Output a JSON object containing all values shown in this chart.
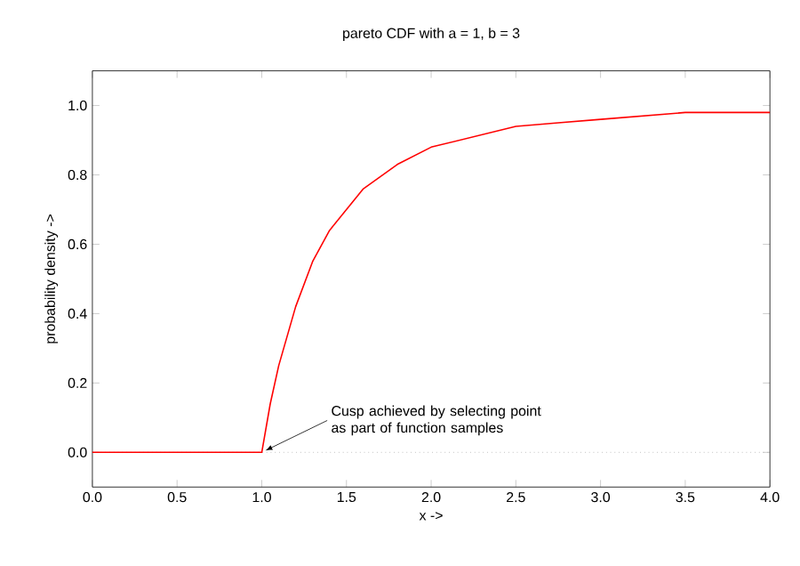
{
  "chart_data": {
    "type": "line",
    "title": "pareto CDF with a = 1, b = 3",
    "xlabel": "x ->",
    "ylabel": "probability density ->",
    "x": [
      0,
      0.5,
      1.0,
      1.05,
      1.1,
      1.2,
      1.3,
      1.4,
      1.5,
      1.6,
      1.8,
      2.0,
      2.25,
      2.5,
      2.75,
      3.0,
      3.5,
      4.0
    ],
    "values": [
      0,
      0,
      0,
      0.14,
      0.25,
      0.42,
      0.55,
      0.64,
      0.7,
      0.76,
      0.83,
      0.88,
      0.91,
      0.94,
      0.95,
      0.96,
      0.98,
      0.98
    ],
    "color": "#ff0000",
    "line_style": "solid",
    "marker": "none",
    "xlim": [
      0,
      4
    ],
    "ylim": [
      -0.1,
      1.1
    ],
    "xticks": [
      {
        "value": 0,
        "label": "0.0"
      },
      {
        "value": 0.5,
        "label": "0.5"
      },
      {
        "value": 1,
        "label": "1.0"
      },
      {
        "value": 1.5,
        "label": "1.5"
      },
      {
        "value": 2,
        "label": "2.0"
      },
      {
        "value": 2.5,
        "label": "2.5"
      },
      {
        "value": 3,
        "label": "3.0"
      },
      {
        "value": 3.5,
        "label": "3.5"
      },
      {
        "value": 4,
        "label": "4.0"
      }
    ],
    "yticks": [
      {
        "value": 0,
        "label": "0.0"
      },
      {
        "value": 0.2,
        "label": "0.2"
      },
      {
        "value": 0.4,
        "label": "0.4"
      },
      {
        "value": 0.6,
        "label": "0.6"
      },
      {
        "value": 0.8,
        "label": "0.8"
      },
      {
        "value": 1,
        "label": "1.0"
      }
    ],
    "ref_lines": [
      {
        "axis": "y",
        "value": 0,
        "color": "#a0a0a0",
        "line_style": "dotted"
      }
    ],
    "annotations": [
      {
        "text": "Cusp achieved by selecting point as part of function samples",
        "x": 1.0,
        "y": 0
      }
    ]
  }
}
